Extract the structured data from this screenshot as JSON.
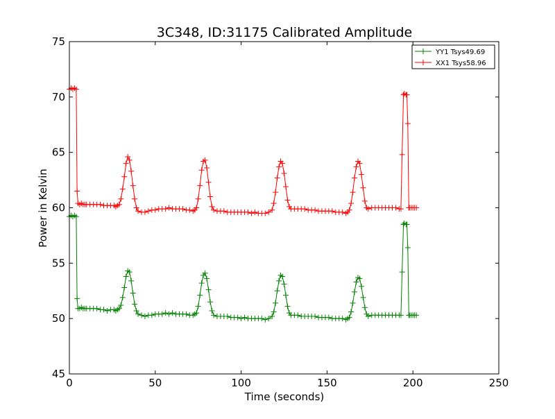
{
  "chart_data": {
    "type": "line",
    "title": "3C348, ID:31175 Calibrated Amplitude",
    "xlabel": "Time (seconds)",
    "ylabel": "Power in Kelvin",
    "xlim": [
      0,
      250
    ],
    "ylim": [
      45,
      75
    ],
    "x_ticks": [
      0,
      50,
      100,
      150,
      200,
      250
    ],
    "y_ticks": [
      45,
      50,
      55,
      60,
      65,
      70,
      75
    ],
    "grid": false,
    "legend_position": "top-right",
    "marker": "+",
    "series": [
      {
        "name": "YY1 Tsys49.69",
        "color": "#008000",
        "points": [
          [
            0,
            59.2
          ],
          [
            1,
            59.3
          ],
          [
            2,
            59.2
          ],
          [
            3,
            59.3
          ],
          [
            4,
            59.2
          ],
          [
            4.5,
            51.8
          ],
          [
            5,
            50.9
          ],
          [
            6,
            50.9
          ],
          [
            7,
            51.0
          ],
          [
            8,
            50.9
          ],
          [
            9,
            50.9
          ],
          [
            10,
            50.9
          ],
          [
            12,
            50.9
          ],
          [
            14,
            50.9
          ],
          [
            16,
            50.9
          ],
          [
            18,
            50.8
          ],
          [
            20,
            50.8
          ],
          [
            22,
            50.7
          ],
          [
            24,
            50.8
          ],
          [
            26,
            50.8
          ],
          [
            27,
            50.7
          ],
          [
            28,
            50.8
          ],
          [
            29,
            50.9
          ],
          [
            30,
            51.2
          ],
          [
            31,
            51.9
          ],
          [
            32,
            52.8
          ],
          [
            33,
            53.8
          ],
          [
            34,
            54.3
          ],
          [
            35,
            54.2
          ],
          [
            36,
            53.4
          ],
          [
            37,
            52.3
          ],
          [
            38,
            51.3
          ],
          [
            39,
            50.7
          ],
          [
            40,
            50.4
          ],
          [
            42,
            50.3
          ],
          [
            44,
            50.2
          ],
          [
            46,
            50.3
          ],
          [
            48,
            50.3
          ],
          [
            50,
            50.4
          ],
          [
            52,
            50.4
          ],
          [
            54,
            50.4
          ],
          [
            56,
            50.5
          ],
          [
            58,
            50.4
          ],
          [
            60,
            50.5
          ],
          [
            62,
            50.4
          ],
          [
            64,
            50.4
          ],
          [
            66,
            50.4
          ],
          [
            68,
            50.4
          ],
          [
            70,
            50.3
          ],
          [
            72,
            50.3
          ],
          [
            73,
            50.4
          ],
          [
            74,
            50.5
          ],
          [
            75,
            51.1
          ],
          [
            76,
            52.1
          ],
          [
            77,
            53.2
          ],
          [
            78,
            53.9
          ],
          [
            79,
            54.1
          ],
          [
            80,
            53.6
          ],
          [
            81,
            52.6
          ],
          [
            82,
            51.5
          ],
          [
            83,
            50.7
          ],
          [
            84,
            50.3
          ],
          [
            86,
            50.2
          ],
          [
            88,
            50.2
          ],
          [
            90,
            50.2
          ],
          [
            92,
            50.2
          ],
          [
            94,
            50.1
          ],
          [
            96,
            50.1
          ],
          [
            98,
            50.1
          ],
          [
            100,
            50.0
          ],
          [
            102,
            50.1
          ],
          [
            104,
            50.0
          ],
          [
            106,
            50.0
          ],
          [
            108,
            50.0
          ],
          [
            110,
            50.0
          ],
          [
            112,
            50.0
          ],
          [
            114,
            49.9
          ],
          [
            116,
            50.0
          ],
          [
            118,
            50.2
          ],
          [
            119,
            50.6
          ],
          [
            120,
            51.4
          ],
          [
            121,
            52.5
          ],
          [
            122,
            53.4
          ],
          [
            123,
            53.9
          ],
          [
            124,
            53.8
          ],
          [
            125,
            53.1
          ],
          [
            126,
            52.1
          ],
          [
            127,
            51.1
          ],
          [
            128,
            50.5
          ],
          [
            129,
            50.3
          ],
          [
            131,
            50.3
          ],
          [
            133,
            50.3
          ],
          [
            135,
            50.2
          ],
          [
            137,
            50.2
          ],
          [
            139,
            50.2
          ],
          [
            141,
            50.2
          ],
          [
            143,
            50.2
          ],
          [
            145,
            50.1
          ],
          [
            147,
            50.1
          ],
          [
            149,
            50.1
          ],
          [
            151,
            50.1
          ],
          [
            153,
            50.0
          ],
          [
            155,
            50.0
          ],
          [
            157,
            50.0
          ],
          [
            159,
            50.0
          ],
          [
            161,
            49.9
          ],
          [
            162,
            50.0
          ],
          [
            163,
            50.1
          ],
          [
            164,
            50.6
          ],
          [
            165,
            51.4
          ],
          [
            166,
            52.4
          ],
          [
            167,
            53.3
          ],
          [
            168,
            53.7
          ],
          [
            169,
            53.6
          ],
          [
            170,
            52.9
          ],
          [
            171,
            51.9
          ],
          [
            172,
            51.0
          ],
          [
            173,
            50.4
          ],
          [
            174,
            50.2
          ],
          [
            176,
            50.3
          ],
          [
            178,
            50.3
          ],
          [
            180,
            50.3
          ],
          [
            182,
            50.3
          ],
          [
            184,
            50.3
          ],
          [
            186,
            50.3
          ],
          [
            188,
            50.3
          ],
          [
            190,
            50.3
          ],
          [
            192,
            50.3
          ],
          [
            193,
            50.3
          ],
          [
            193.7,
            54.2
          ],
          [
            194.5,
            58.5
          ],
          [
            195,
            58.6
          ],
          [
            196,
            58.5
          ],
          [
            196.5,
            58.5
          ],
          [
            197,
            56.4
          ],
          [
            197.6,
            50.3
          ],
          [
            198,
            50.3
          ],
          [
            199,
            50.3
          ],
          [
            200,
            50.3
          ],
          [
            201,
            50.3
          ],
          [
            202,
            50.3
          ]
        ]
      },
      {
        "name": "XX1 Tsys58.96",
        "color": "#ff0000",
        "points": [
          [
            0,
            70.7
          ],
          [
            1,
            70.8
          ],
          [
            2,
            70.7
          ],
          [
            3,
            70.8
          ],
          [
            4,
            70.7
          ],
          [
            4.5,
            61.5
          ],
          [
            5,
            60.4
          ],
          [
            6,
            60.3
          ],
          [
            7,
            60.4
          ],
          [
            8,
            60.3
          ],
          [
            9,
            60.3
          ],
          [
            10,
            60.3
          ],
          [
            12,
            60.3
          ],
          [
            14,
            60.3
          ],
          [
            16,
            60.3
          ],
          [
            18,
            60.3
          ],
          [
            20,
            60.2
          ],
          [
            22,
            60.2
          ],
          [
            24,
            60.2
          ],
          [
            26,
            60.2
          ],
          [
            27,
            60.1
          ],
          [
            28,
            60.2
          ],
          [
            29,
            60.3
          ],
          [
            30,
            60.8
          ],
          [
            31,
            61.7
          ],
          [
            32,
            62.8
          ],
          [
            33,
            64.0
          ],
          [
            34,
            64.6
          ],
          [
            35,
            64.3
          ],
          [
            36,
            63.3
          ],
          [
            37,
            62.0
          ],
          [
            38,
            60.8
          ],
          [
            39,
            60.0
          ],
          [
            40,
            59.7
          ],
          [
            42,
            59.6
          ],
          [
            44,
            59.6
          ],
          [
            46,
            59.7
          ],
          [
            48,
            59.8
          ],
          [
            50,
            59.8
          ],
          [
            52,
            59.9
          ],
          [
            54,
            59.9
          ],
          [
            56,
            59.9
          ],
          [
            58,
            60.0
          ],
          [
            60,
            59.9
          ],
          [
            62,
            59.9
          ],
          [
            64,
            59.9
          ],
          [
            66,
            59.9
          ],
          [
            68,
            59.8
          ],
          [
            70,
            59.8
          ],
          [
            72,
            59.7
          ],
          [
            73,
            59.8
          ],
          [
            74,
            60.0
          ],
          [
            75,
            60.8
          ],
          [
            76,
            62.0
          ],
          [
            77,
            63.4
          ],
          [
            78,
            64.2
          ],
          [
            79,
            64.3
          ],
          [
            80,
            63.6
          ],
          [
            81,
            62.3
          ],
          [
            82,
            61.0
          ],
          [
            83,
            60.1
          ],
          [
            84,
            59.8
          ],
          [
            86,
            59.7
          ],
          [
            88,
            59.7
          ],
          [
            90,
            59.7
          ],
          [
            92,
            59.6
          ],
          [
            94,
            59.6
          ],
          [
            96,
            59.6
          ],
          [
            98,
            59.6
          ],
          [
            100,
            59.6
          ],
          [
            102,
            59.6
          ],
          [
            104,
            59.6
          ],
          [
            106,
            59.5
          ],
          [
            108,
            59.6
          ],
          [
            110,
            59.5
          ],
          [
            112,
            59.5
          ],
          [
            114,
            59.5
          ],
          [
            116,
            59.6
          ],
          [
            118,
            59.8
          ],
          [
            119,
            60.4
          ],
          [
            120,
            61.4
          ],
          [
            121,
            62.7
          ],
          [
            122,
            63.7
          ],
          [
            123,
            64.2
          ],
          [
            124,
            64.0
          ],
          [
            125,
            63.1
          ],
          [
            126,
            61.9
          ],
          [
            127,
            60.7
          ],
          [
            128,
            60.1
          ],
          [
            129,
            59.9
          ],
          [
            131,
            59.9
          ],
          [
            133,
            59.9
          ],
          [
            135,
            59.9
          ],
          [
            137,
            59.9
          ],
          [
            139,
            59.8
          ],
          [
            141,
            59.8
          ],
          [
            143,
            59.8
          ],
          [
            145,
            59.7
          ],
          [
            147,
            59.7
          ],
          [
            149,
            59.7
          ],
          [
            151,
            59.7
          ],
          [
            153,
            59.7
          ],
          [
            155,
            59.6
          ],
          [
            157,
            59.6
          ],
          [
            159,
            59.6
          ],
          [
            161,
            59.5
          ],
          [
            162,
            59.6
          ],
          [
            163,
            59.8
          ],
          [
            164,
            60.4
          ],
          [
            165,
            61.4
          ],
          [
            166,
            62.7
          ],
          [
            167,
            63.7
          ],
          [
            168,
            64.2
          ],
          [
            169,
            64.0
          ],
          [
            170,
            63.0
          ],
          [
            171,
            61.8
          ],
          [
            172,
            60.6
          ],
          [
            173,
            60.0
          ],
          [
            174,
            59.9
          ],
          [
            176,
            60.0
          ],
          [
            178,
            60.0
          ],
          [
            180,
            60.0
          ],
          [
            182,
            60.0
          ],
          [
            184,
            60.0
          ],
          [
            186,
            60.0
          ],
          [
            188,
            60.0
          ],
          [
            190,
            60.0
          ],
          [
            192,
            59.9
          ],
          [
            193,
            59.9
          ],
          [
            193.7,
            64.8
          ],
          [
            194.5,
            70.2
          ],
          [
            195,
            70.3
          ],
          [
            196,
            70.2
          ],
          [
            196.5,
            70.2
          ],
          [
            197,
            67.6
          ],
          [
            197.6,
            60.0
          ],
          [
            198,
            60.0
          ],
          [
            199,
            60.0
          ],
          [
            200,
            60.0
          ],
          [
            201,
            60.0
          ],
          [
            202,
            60.0
          ]
        ]
      }
    ]
  }
}
